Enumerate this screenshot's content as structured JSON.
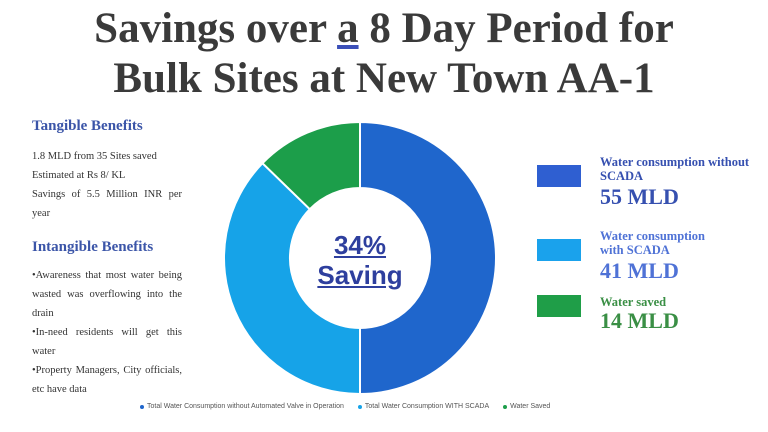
{
  "title": {
    "line1_pre": "Savings over ",
    "line1_u": "a",
    "line1_post": " 8 Day Period for",
    "line2": "Bulk Sites at New Town AA-1"
  },
  "tangible": {
    "heading": "Tangible Benefits",
    "lines": [
      "1.8 MLD from 35 Sites saved",
      "Estimated at Rs 8/ KL",
      "Savings of 5.5 Million INR per year"
    ]
  },
  "intangible": {
    "heading": "Intangible Benefits",
    "bullets": [
      "•Awareness that most water being wasted was overflowing into the drain",
      "•In-need residents will get this water",
      "•Property Managers, City officials, etc have data"
    ]
  },
  "center": {
    "percent": "34%",
    "label": "Saving"
  },
  "chart_data": {
    "type": "pie",
    "donut": true,
    "series": [
      {
        "name": "Total Water Consumption without Automated Valve in Operation",
        "value": 55,
        "color": "#1f66cc"
      },
      {
        "name": "Total Water Consumption WITH SCADA",
        "value": 41,
        "color": "#16a3e8"
      },
      {
        "name": "Water Saved",
        "value": 14,
        "color": "#1c9e4a"
      }
    ],
    "legend_position": "bottom"
  },
  "right_legend": [
    {
      "label": "Water consumption without SCADA",
      "value": "55 MLD",
      "color": "#2f5fd1",
      "text_color": "#3650b0"
    },
    {
      "label": "Water consumption with SCADA",
      "value": "41 MLD",
      "color": "#1aa2ec",
      "text_color": "#4f72d6"
    },
    {
      "label": "Water saved",
      "value": "14 MLD",
      "color": "#1f9e48",
      "text_color": "#3a8f45"
    }
  ]
}
